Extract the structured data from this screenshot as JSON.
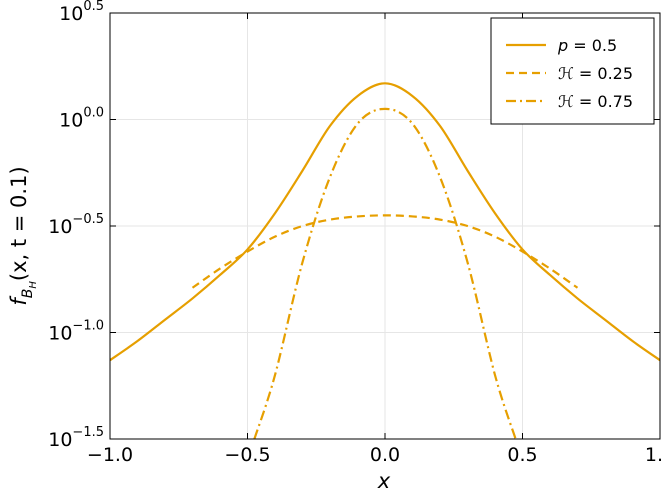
{
  "chart_data": {
    "type": "line",
    "title": "",
    "xlabel": "x",
    "ylabel": "f_{B_H}(x, t = 0.1)",
    "ylabel_parts": {
      "f": "f",
      "sub": "B",
      "subsub": "H",
      "rest": "(x, t = 0.1)"
    },
    "y_scale": "log10",
    "xlim": [
      -1.0,
      1.0
    ],
    "ylim_log10": [
      -1.5,
      0.5
    ],
    "grid": true,
    "legend_placement": "top-right",
    "x_ticks": [
      {
        "value": -1.0,
        "label": "−1.0"
      },
      {
        "value": -0.5,
        "label": "−0.5"
      },
      {
        "value": 0.0,
        "label": "0.0"
      },
      {
        "value": 0.5,
        "label": "0.5"
      },
      {
        "value": 1.0,
        "label": "1.0"
      }
    ],
    "y_ticks": [
      {
        "value": -1.5,
        "base": "10",
        "exp": "−1.5"
      },
      {
        "value": -1.0,
        "base": "10",
        "exp": "−1.0"
      },
      {
        "value": -0.5,
        "base": "10",
        "exp": "−0.5"
      },
      {
        "value": 0.0,
        "base": "10",
        "exp": "0.0"
      },
      {
        "value": 0.5,
        "base": "10",
        "exp": "0.5"
      }
    ],
    "series": [
      {
        "name": "p = 0.5",
        "name_parts": {
          "sym": "p",
          "rest": " = 0.5"
        },
        "style": "solid",
        "color": "#E69F00",
        "x": [
          -1.0,
          -0.9,
          -0.8,
          -0.7,
          -0.6,
          -0.5,
          -0.4,
          -0.3,
          -0.2,
          -0.1,
          0.0,
          0.1,
          0.2,
          0.3,
          0.4,
          0.5,
          0.6,
          0.7,
          0.8,
          0.9,
          1.0
        ],
        "log10_y": [
          -1.13,
          -1.04,
          -0.94,
          -0.84,
          -0.73,
          -0.61,
          -0.44,
          -0.24,
          -0.03,
          0.11,
          0.17,
          0.11,
          -0.03,
          -0.24,
          -0.44,
          -0.61,
          -0.73,
          -0.84,
          -0.94,
          -1.04,
          -1.13
        ]
      },
      {
        "name": "ℋ = 0.25",
        "name_parts": {
          "sym": "ℋ",
          "rest": " = 0.25"
        },
        "style": "dashed",
        "color": "#E69F00",
        "x": [
          -0.7,
          -0.6,
          -0.5,
          -0.4,
          -0.3,
          -0.2,
          -0.1,
          0.0,
          0.1,
          0.2,
          0.3,
          0.4,
          0.5,
          0.6,
          0.7
        ],
        "log10_y": [
          -0.79,
          -0.7,
          -0.62,
          -0.55,
          -0.5,
          -0.47,
          -0.455,
          -0.45,
          -0.455,
          -0.47,
          -0.5,
          -0.55,
          -0.62,
          -0.7,
          -0.79
        ]
      },
      {
        "name": "ℋ = 0.75",
        "name_parts": {
          "sym": "ℋ",
          "rest": " = 0.75"
        },
        "style": "dashdot",
        "color": "#E69F00",
        "x": [
          -0.475,
          -0.4,
          -0.3,
          -0.2,
          -0.1,
          0.0,
          0.1,
          0.2,
          0.3,
          0.4,
          0.475
        ],
        "log10_y": [
          -1.5,
          -1.2,
          -0.67,
          -0.27,
          -0.02,
          0.05,
          -0.02,
          -0.27,
          -0.67,
          -1.2,
          -1.5
        ]
      }
    ]
  }
}
